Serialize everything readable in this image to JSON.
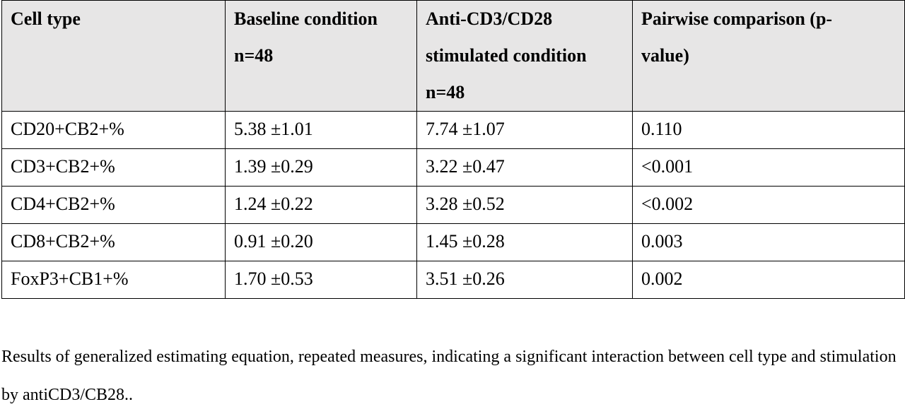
{
  "table": {
    "headers": [
      [
        "Cell type"
      ],
      [
        "Baseline condition",
        "n=48"
      ],
      [
        "Anti-CD3/CD28",
        "stimulated condition",
        "n=48"
      ],
      [
        "Pairwise comparison (p-",
        "value)"
      ]
    ],
    "rows": [
      [
        "CD20+CB2+%",
        "5.38 ±1.01",
        "7.74 ±1.07",
        "0.110"
      ],
      [
        "CD3+CB2+%",
        "1.39 ±0.29",
        "3.22 ±0.47",
        "<0.001"
      ],
      [
        "CD4+CB2+%",
        "1.24 ±0.22",
        "3.28 ±0.52",
        "<0.002"
      ],
      [
        "CD8+CB2+%",
        "0.91 ±0.20",
        "1.45 ±0.28",
        "0.003"
      ],
      [
        "FoxP3+CB1+%",
        "1.70 ±0.53",
        "3.51 ±0.26",
        "0.002"
      ]
    ],
    "header_background": "#e7e6e6"
  },
  "caption": "Results of generalized estimating equation, repeated measures, indicating a significant interaction between cell type and stimulation by antiCD3/CB28.."
}
